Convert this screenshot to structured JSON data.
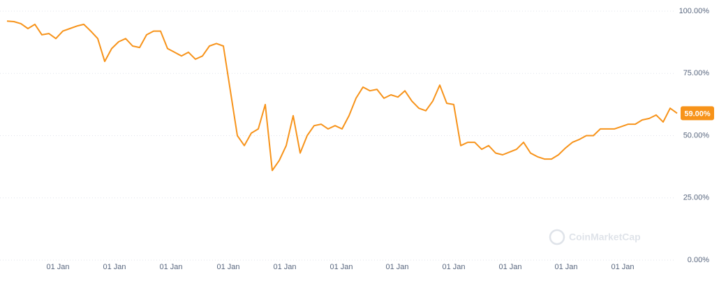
{
  "chart_data": {
    "type": "line",
    "color": "#f7931a",
    "grid": true,
    "values": [
      96,
      95.8,
      95,
      93,
      94.7,
      90.5,
      91,
      89,
      92,
      93,
      94,
      94.7,
      92,
      89,
      79.8,
      85,
      87.7,
      89,
      86,
      85.4,
      90.5,
      92,
      92,
      85,
      83.5,
      82,
      83.5,
      80.7,
      82,
      86,
      87,
      86,
      68,
      50,
      46,
      51,
      52.7,
      62.5,
      36,
      40,
      46,
      58,
      43,
      50,
      54,
      54.6,
      52.7,
      54,
      52.7,
      58,
      65,
      69.5,
      68,
      68.6,
      65,
      66.4,
      65.5,
      68,
      63.9,
      61,
      60,
      63.9,
      70.3,
      63,
      62.5,
      46,
      47.3,
      47.3,
      44.5,
      46,
      43,
      42.3,
      43.4,
      44.5,
      47.3,
      43,
      41.5,
      40.6,
      40.6,
      42.3,
      45,
      47.3,
      48.5,
      50,
      50,
      52.7,
      52.7,
      52.7,
      53.6,
      54.6,
      54.6,
      56.3,
      56.9,
      58.3,
      55.5,
      61,
      59
    ],
    "ylim": [
      0,
      100
    ],
    "yticks": [
      {
        "value": 0,
        "label": "0.00%"
      },
      {
        "value": 25,
        "label": "25.00%"
      },
      {
        "value": 50,
        "label": "50.00%"
      },
      {
        "value": 75,
        "label": "75.00%"
      },
      {
        "value": 100,
        "label": "100.00%"
      }
    ],
    "xticks": [
      {
        "value": 7.3,
        "label": "01 Jan"
      },
      {
        "value": 15.4,
        "label": "01 Jan"
      },
      {
        "value": 23.5,
        "label": "01 Jan"
      },
      {
        "value": 31.7,
        "label": "01 Jan"
      },
      {
        "value": 39.8,
        "label": "01 Jan"
      },
      {
        "value": 47.9,
        "label": "01 Jan"
      },
      {
        "value": 55.9,
        "label": "01 Jan"
      },
      {
        "value": 64,
        "label": "01 Jan"
      },
      {
        "value": 72.1,
        "label": "01 Jan"
      },
      {
        "value": 80.1,
        "label": "01 Jan"
      },
      {
        "value": 88.2,
        "label": "01 Jan"
      }
    ],
    "last_label": {
      "value": 59,
      "label": "59.00%"
    },
    "watermark": "CoinMarketCap"
  }
}
